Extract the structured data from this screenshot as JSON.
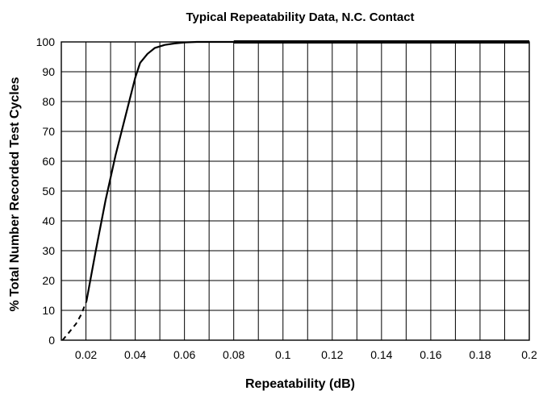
{
  "chart_data": {
    "type": "line",
    "title": "Typical Repeatability Data, N.C. Contact",
    "xlabel": "Repeatability (dB)",
    "ylabel": "% Total Number Recorded Test Cycles",
    "xlim": [
      0.01,
      0.2
    ],
    "ylim": [
      0,
      100
    ],
    "x_ticks": [
      0.02,
      0.04,
      0.06,
      0.08,
      0.1,
      0.12,
      0.14,
      0.16,
      0.18,
      0.2
    ],
    "x_tick_labels": [
      "0.02",
      "0.04",
      "0.06",
      "0.08",
      "0.1",
      "0.12",
      "0.14",
      "0.16",
      "0.18",
      "0.2"
    ],
    "y_ticks": [
      0,
      10,
      20,
      30,
      40,
      50,
      60,
      70,
      80,
      90,
      100
    ],
    "y_tick_labels": [
      "0",
      "10",
      "20",
      "30",
      "40",
      "50",
      "60",
      "70",
      "80",
      "90",
      "100"
    ],
    "x_grid_step": 0.01,
    "y_grid_step": 10,
    "grid": true,
    "series": [
      {
        "style": "dashed",
        "x": [
          0.0105,
          0.013,
          0.016,
          0.018,
          0.0202
        ],
        "y": [
          0,
          2.5,
          5.5,
          8.5,
          13
        ]
      },
      {
        "style": "solid",
        "x": [
          0.0202,
          0.024,
          0.028,
          0.032,
          0.036,
          0.04,
          0.042,
          0.045,
          0.048,
          0.052,
          0.056,
          0.06,
          0.065,
          0.07,
          0.075,
          0.08
        ],
        "y": [
          13,
          30,
          47,
          62,
          75,
          88,
          93,
          96,
          98,
          99,
          99.5,
          99.8,
          100,
          100,
          100,
          100
        ]
      },
      {
        "style": "bold",
        "x": [
          0.08,
          0.2
        ],
        "y": [
          100,
          100
        ]
      }
    ]
  }
}
